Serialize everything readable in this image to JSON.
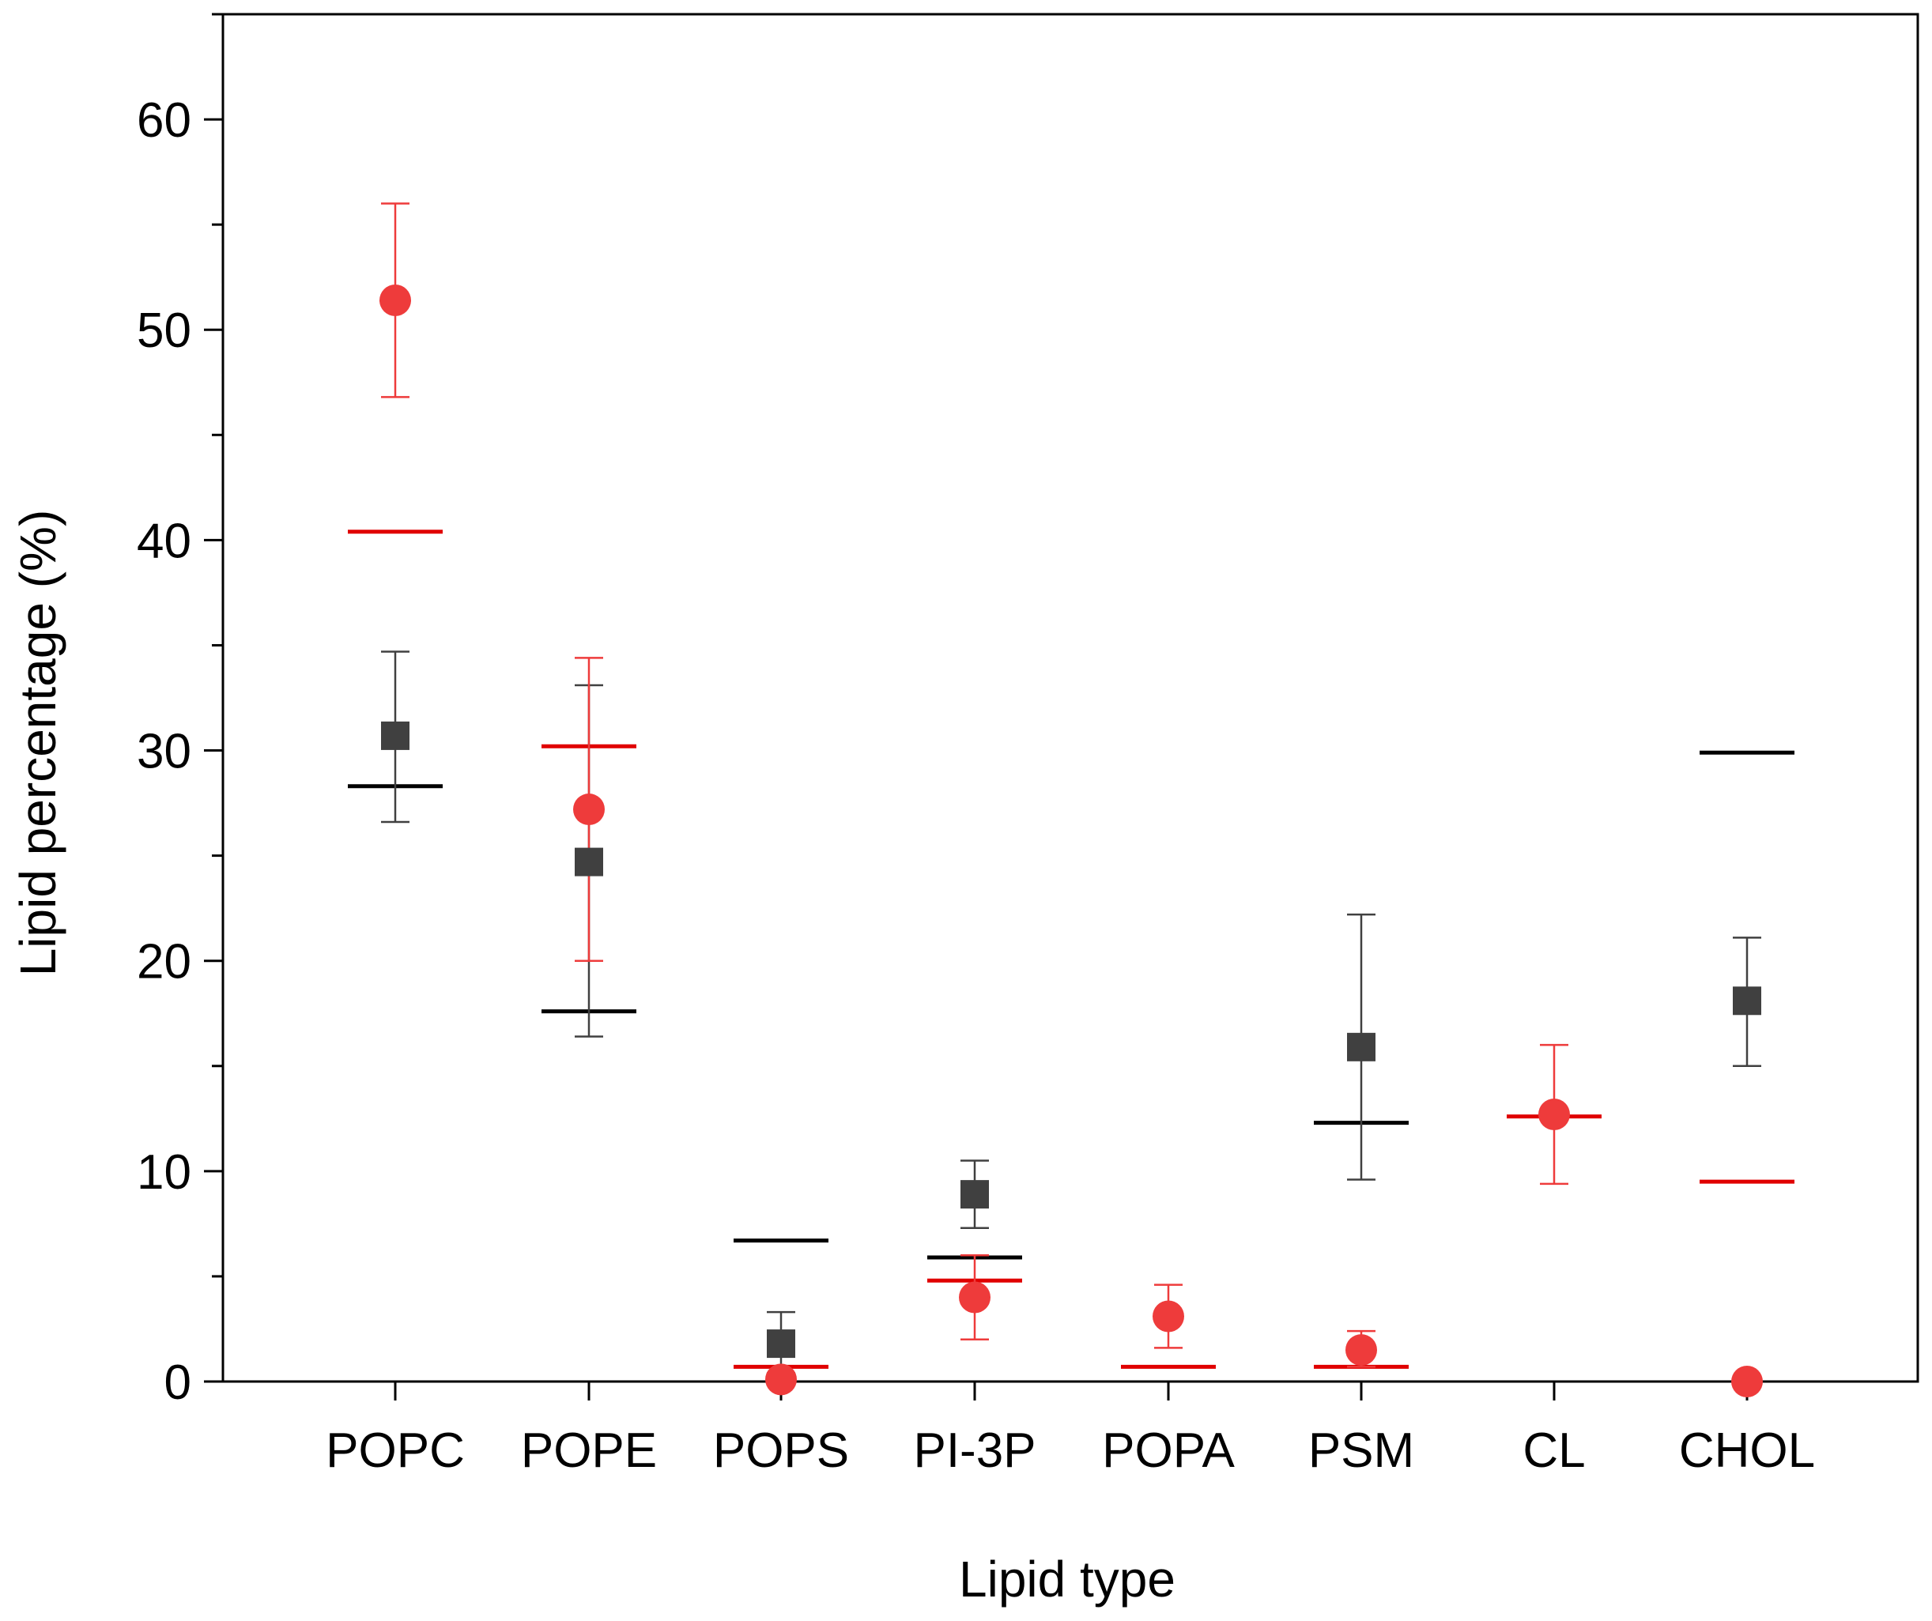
{
  "chart_data": {
    "type": "scatter",
    "title": "",
    "xlabel": "Lipid type",
    "ylabel": "Lipid percentage (%)",
    "ylim": [
      0,
      65
    ],
    "yticks": [
      0,
      10,
      20,
      30,
      40,
      50,
      60
    ],
    "categories": [
      "POPC",
      "POPE",
      "POPS",
      "PI-3P",
      "POPA",
      "PSM",
      "CL",
      "CHOL"
    ],
    "grid": false,
    "series": [
      {
        "name": "black squares",
        "marker": "square",
        "color": "#404040",
        "values": [
          30.7,
          24.7,
          1.8,
          8.9,
          null,
          15.9,
          null,
          18.1
        ],
        "err_low": [
          26.6,
          16.4,
          0.4,
          7.3,
          null,
          9.6,
          null,
          15.0
        ],
        "err_high": [
          34.7,
          33.1,
          3.3,
          10.5,
          null,
          22.2,
          null,
          21.1
        ]
      },
      {
        "name": "red circles",
        "marker": "circle",
        "color": "#ee3b3b",
        "values": [
          51.4,
          27.2,
          0.1,
          4.0,
          3.1,
          1.5,
          12.7,
          0.0
        ],
        "err_low": [
          46.8,
          20.0,
          null,
          2.0,
          1.6,
          0.7,
          9.4,
          null
        ],
        "err_high": [
          56.0,
          34.4,
          null,
          6.0,
          4.6,
          2.4,
          16.0,
          null
        ]
      }
    ],
    "reference_lines": [
      {
        "name": "black reference",
        "color": "#000000",
        "values": [
          28.3,
          17.6,
          6.7,
          5.9,
          null,
          12.3,
          null,
          29.9
        ]
      },
      {
        "name": "red reference",
        "color": "#e00000",
        "values": [
          40.4,
          30.2,
          0.7,
          4.8,
          0.7,
          0.7,
          12.6,
          9.5
        ]
      }
    ]
  }
}
